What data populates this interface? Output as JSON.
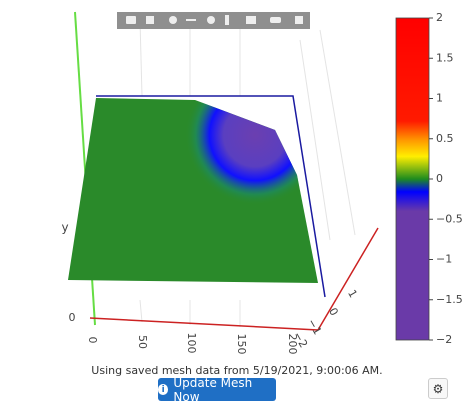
{
  "scene": {
    "y_axis": {
      "title": "y",
      "ticks": [
        "0"
      ]
    },
    "x_axis": {
      "ticks": [
        "0",
        "50",
        "100",
        "150",
        "200"
      ]
    },
    "z_axis": {
      "ticks": [
        "1",
        "0",
        "−1",
        "−2"
      ]
    }
  },
  "colorbar": {
    "range": [
      -2,
      2
    ],
    "ticks": [
      2,
      1.5,
      1,
      0.5,
      0,
      {
        "value": -0.5,
        "label": "−0.5"
      },
      {
        "value": -1,
        "label": "−1"
      },
      {
        "value": -1.5,
        "label": "−1.5"
      },
      {
        "value": -2,
        "label": "−2"
      }
    ]
  },
  "status": "Using saved mesh data from 5/19/2021, 9:00:06 AM.",
  "button": "Update Mesh Now"
}
